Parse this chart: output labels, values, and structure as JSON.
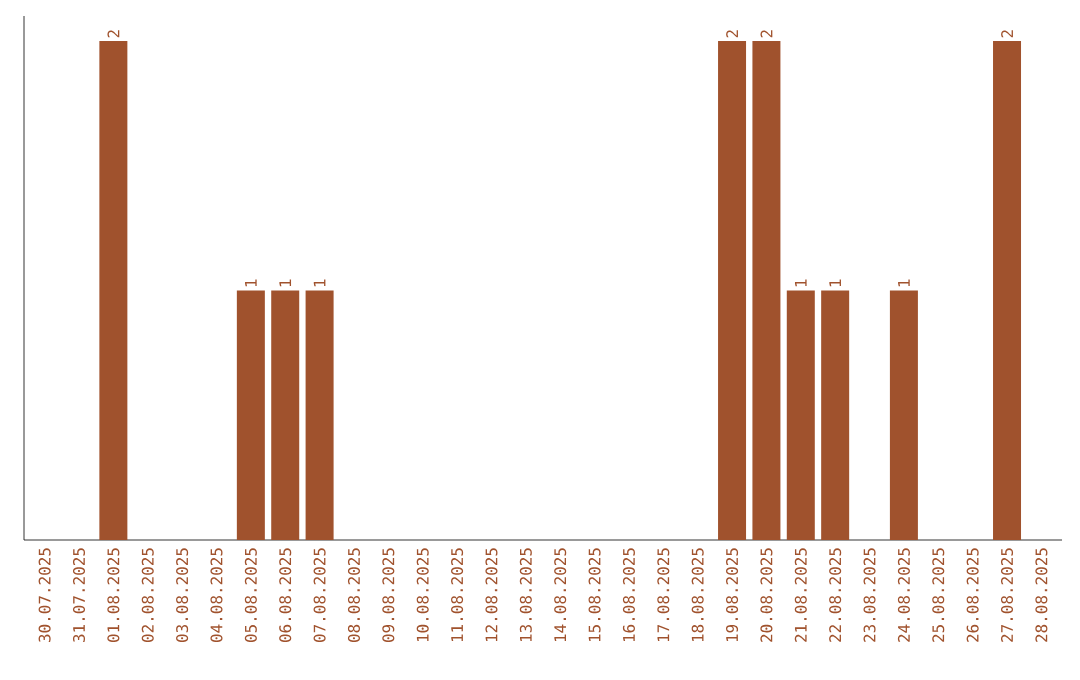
{
  "chart_data": {
    "type": "bar",
    "color": "#a0522d",
    "categories": [
      "30.07.2025",
      "31.07.2025",
      "01.08.2025",
      "02.08.2025",
      "03.08.2025",
      "04.08.2025",
      "05.08.2025",
      "06.08.2025",
      "07.08.2025",
      "08.08.2025",
      "09.08.2025",
      "10.08.2025",
      "11.08.2025",
      "12.08.2025",
      "13.08.2025",
      "14.08.2025",
      "15.08.2025",
      "16.08.2025",
      "17.08.2025",
      "18.08.2025",
      "19.08.2025",
      "20.08.2025",
      "21.08.2025",
      "22.08.2025",
      "23.08.2025",
      "24.08.2025",
      "25.08.2025",
      "26.08.2025",
      "27.08.2025",
      "28.08.2025"
    ],
    "values": [
      0,
      0,
      2,
      0,
      0,
      0,
      1,
      1,
      1,
      0,
      0,
      0,
      0,
      0,
      0,
      0,
      0,
      0,
      0,
      0,
      2,
      2,
      1,
      1,
      0,
      1,
      0,
      0,
      2,
      0
    ],
    "value_labels": [
      null,
      null,
      "2",
      null,
      null,
      null,
      "1",
      "1",
      "1",
      null,
      null,
      null,
      null,
      null,
      null,
      null,
      null,
      null,
      null,
      null,
      "2",
      "2",
      "1",
      "1",
      null,
      "1",
      null,
      null,
      "2",
      null
    ],
    "tick_labels": "x"
  }
}
